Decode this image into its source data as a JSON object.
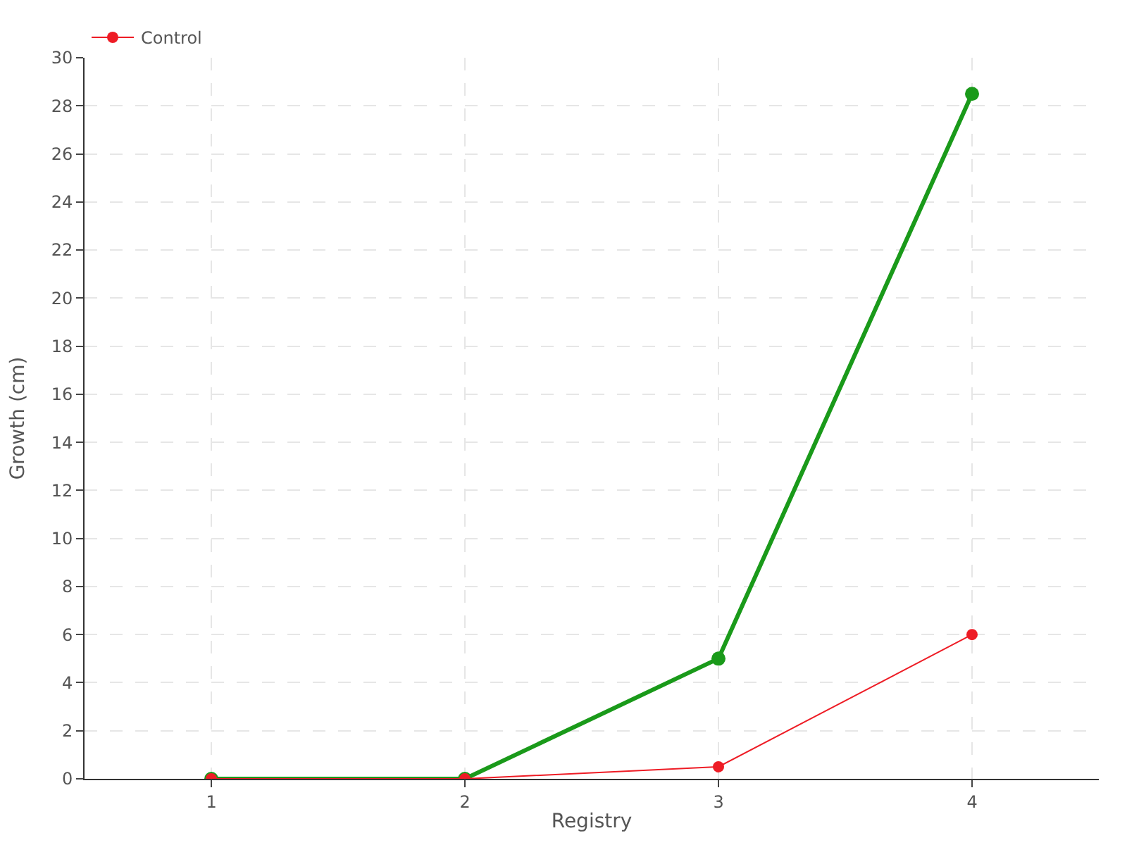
{
  "chart_data": {
    "type": "line",
    "xlabel": "Registry",
    "ylabel": "Growth (cm)",
    "x": [
      1,
      2,
      3,
      4
    ],
    "series": [
      {
        "color": "#1a9a1a",
        "values": [
          0,
          0,
          5,
          28.5
        ]
      },
      {
        "name": "Control",
        "color": "#ee1c25",
        "values": [
          0,
          0,
          0.5,
          6
        ]
      }
    ],
    "xlim": [
      0.5,
      4.5
    ],
    "xticks": [
      1,
      2,
      3,
      4
    ],
    "ylim": [
      0,
      30
    ],
    "yticks": [
      0,
      2,
      4,
      6,
      8,
      10,
      12,
      14,
      16,
      18,
      20,
      22,
      24,
      26,
      28,
      30
    ],
    "grid": true,
    "legend": "top left",
    "marker": "circle",
    "line_style": "solid"
  }
}
